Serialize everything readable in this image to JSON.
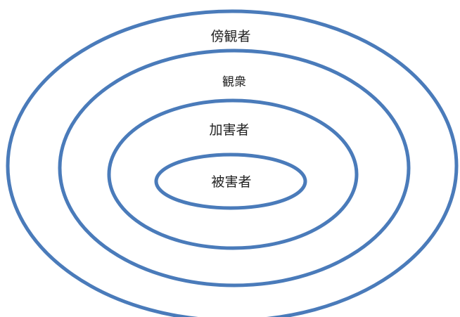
{
  "diagram": {
    "ring_color": "#4a7bba",
    "rings": [
      {
        "label": "傍観者"
      },
      {
        "label": "観衆"
      },
      {
        "label": "加害者"
      },
      {
        "label": "被害者"
      }
    ]
  }
}
